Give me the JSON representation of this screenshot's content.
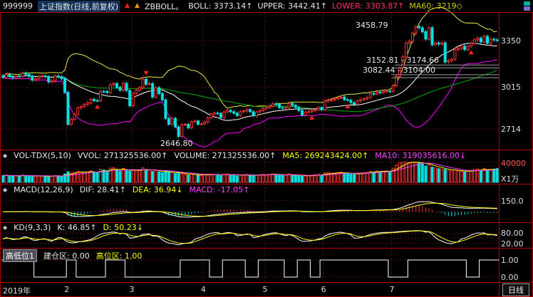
{
  "header": {
    "code": "999999",
    "title": "上证指数(日线,前复权)",
    "indicator_label": "ZBBOLL。",
    "boll": "BOLL: 3373.14↑",
    "upper": "UPPER: 3442.41↑",
    "lower": "LOWER: 3303.87↑",
    "ma60": "MA60: 3219◇"
  },
  "panels": {
    "vol": {
      "name": "VOL-TDX(5,10)",
      "vvol": "VVOL: 271325536.00↑",
      "volume": "VOLUME: 271325536.00↑",
      "ma5": "MA5: 269243424.00↑",
      "ma10": "MA10: 319035616.00↓",
      "axis_max": "40000",
      "axis_unit": "X1万"
    },
    "macd": {
      "name": "MACD(12,26,9)",
      "dif": "DIF: 28.41↑",
      "dea": "DEA: 36.94↓",
      "macd": "MACD: -17.05↑",
      "axis": "150.0"
    },
    "kd": {
      "name": "KD(9,3,3)",
      "k": "K: 46.85↑",
      "d": "D: 50.23↓",
      "axis_top": "80.00",
      "axis_bottom": "20.00"
    },
    "hl": {
      "name": "高低位1",
      "build": "建仓区: 0.00",
      "high": "高位区: 1.00",
      "axis_top": "1.00",
      "axis_bottom": "0.00"
    }
  },
  "main_axis": [
    {
      "label": "3350",
      "price": 3350
    },
    {
      "label": "3015",
      "price": 3015
    },
    {
      "label": "2714",
      "price": 2714
    }
  ],
  "annotations": {
    "peak": "3458.79",
    "gap1": "3152.81 - 3174.66",
    "gap2": "3082.44 - 3104.00",
    "low": "2646.80"
  },
  "footer": {
    "period": "日线"
  },
  "chart_data": {
    "type": "candlestick",
    "title": "上证指数 日线 with BOLL(20,2), MA60, VOL-TDX, MACD(12,26,9), KD(9,3,3), 高低位1",
    "ylim_main": [
      2570,
      3550
    ],
    "months": [
      {
        "label": "2019年",
        "day": 0
      },
      {
        "label": "2",
        "day": 20
      },
      {
        "label": "3",
        "day": 40
      },
      {
        "label": "4",
        "day": 62
      },
      {
        "label": "5",
        "day": 81
      },
      {
        "label": "6",
        "day": 99
      },
      {
        "label": "7",
        "day": 120
      }
    ],
    "candles": {
      "closes": [
        3085,
        3105,
        3090,
        3083,
        3095,
        3092,
        3115,
        3107,
        3092,
        3066,
        3075,
        3090,
        3095,
        3090,
        3052,
        3060,
        3095,
        3090,
        3075,
        2977,
        2747,
        2783,
        2818,
        2866,
        2875,
        2890,
        2902,
        2926,
        2918,
        2917,
        2984,
        2983,
        2975,
        3031,
        3040,
        3013,
        2992,
        3042,
        2991,
        2880,
        2970,
        2993,
        3012,
        3072,
        3035,
        3040,
        2943,
        3011,
        2968,
        2923,
        2789,
        2747,
        2790,
        2728,
        2660,
        2745,
        2747,
        2722,
        2765,
        2771,
        2747,
        2750,
        2763,
        2793,
        2821,
        2828,
        2825,
        2796,
        2836,
        2847,
        2838,
        2827,
        2810,
        2838,
        2843,
        2852,
        2838,
        2808,
        2836,
        2846,
        2860,
        2868,
        2878,
        2895,
        2891,
        2867,
        2863,
        2868,
        2898,
        2883,
        2870,
        2846,
        2813,
        2836,
        2838,
        2846,
        2852,
        2867,
        2852,
        2915,
        2921,
        2923,
        2930,
        2937,
        2943,
        2925,
        2920,
        2903,
        2890,
        2915,
        2925,
        2931,
        2940,
        2967,
        2965,
        2979,
        2976,
        2984,
        2986,
        2985,
        3025,
        3091,
        3153,
        3233,
        3332,
        3345,
        3403,
        3450,
        3443,
        3414,
        3361,
        3443,
        3320,
        3333,
        3325,
        3334,
        3196,
        3205,
        3215,
        3286,
        3294,
        3310,
        3286,
        3310,
        3330,
        3355,
        3367,
        3340,
        3380,
        3330,
        3360,
        3355,
        3352
      ],
      "high_override": {
        "127": 3458.79
      },
      "low_override": {
        "54": 2646.8
      }
    },
    "volumes": [
      13500,
      14200,
      12800,
      12500,
      13000,
      12800,
      14500,
      13800,
      12600,
      11800,
      12200,
      12800,
      13000,
      12700,
      11500,
      11900,
      13400,
      12900,
      12300,
      16500,
      21000,
      18500,
      19500,
      22000,
      20500,
      19800,
      20500,
      22500,
      19800,
      19000,
      26000,
      24500,
      23000,
      28000,
      29000,
      24500,
      22000,
      27500,
      23500,
      22000,
      25000,
      23500,
      24000,
      28500,
      25000,
      24000,
      21500,
      23000,
      20500,
      19000,
      22500,
      21000,
      18500,
      17500,
      19500,
      17000,
      15500,
      14800,
      16500,
      15500,
      14000,
      13500,
      15000,
      15800,
      16500,
      15800,
      15000,
      13500,
      15800,
      16500,
      15000,
      14200,
      12800,
      14200,
      15000,
      15800,
      14200,
      12800,
      14200,
      15000,
      15800,
      15000,
      15800,
      16500,
      15800,
      14200,
      13500,
      14200,
      16500,
      15000,
      13500,
      12800,
      12000,
      12800,
      13500,
      14200,
      15000,
      15800,
      14200,
      18500,
      19200,
      17800,
      18500,
      19200,
      20000,
      17800,
      17000,
      16200,
      15500,
      17800,
      18500,
      19200,
      20000,
      22000,
      20500,
      22800,
      21200,
      22000,
      22800,
      21200,
      28000,
      34000,
      39000,
      39500,
      39800,
      39500,
      39800,
      39900,
      38000,
      36000,
      32000,
      36500,
      30000,
      28500,
      27000,
      26500,
      25500,
      23500,
      22500,
      24500,
      22800,
      21800,
      20500,
      22000,
      23500,
      25500,
      26500,
      24000,
      27500,
      23000,
      25500,
      26200,
      27132
    ],
    "vol_ylim": [
      0,
      45000
    ],
    "macd_ylim": [
      -120,
      260
    ],
    "hl_pattern": "111111111100000000001110000000001111110000000000000000011111111100001111111000011111111000011110001111111111111111111110000001111111111111111110000111111",
    "gaps": [
      {
        "from_day": 121,
        "top": 3174.66,
        "bottom": 3152.81
      },
      {
        "from_day": 120,
        "top": 3104.0,
        "bottom": 3082.44
      }
    ],
    "markers": [
      {
        "day": 29,
        "dir": "below"
      },
      {
        "day": 44,
        "dir": "above"
      },
      {
        "day": 95,
        "dir": "below"
      },
      {
        "day": 106,
        "dir": "below"
      },
      {
        "day": 144,
        "dir": "below"
      }
    ],
    "colors": {
      "up": "#ff3232",
      "down": "#00e2e2",
      "boll_mid": "#ffffff",
      "boll_upper": "#e8e840",
      "boll_lower": "#ff00ff",
      "ma60": "#00aa00",
      "ma5": "#ffff00",
      "ma10": "#ff40ff",
      "dif": "#ffffff",
      "dea": "#ffff00",
      "k": "#ffffff",
      "d": "#ffff00",
      "hl_line": "#ffffff",
      "grid": "#5a0d0d",
      "frame": "#b00000",
      "gap_line": "#9a9a9a",
      "marker": "#ff2020"
    }
  }
}
